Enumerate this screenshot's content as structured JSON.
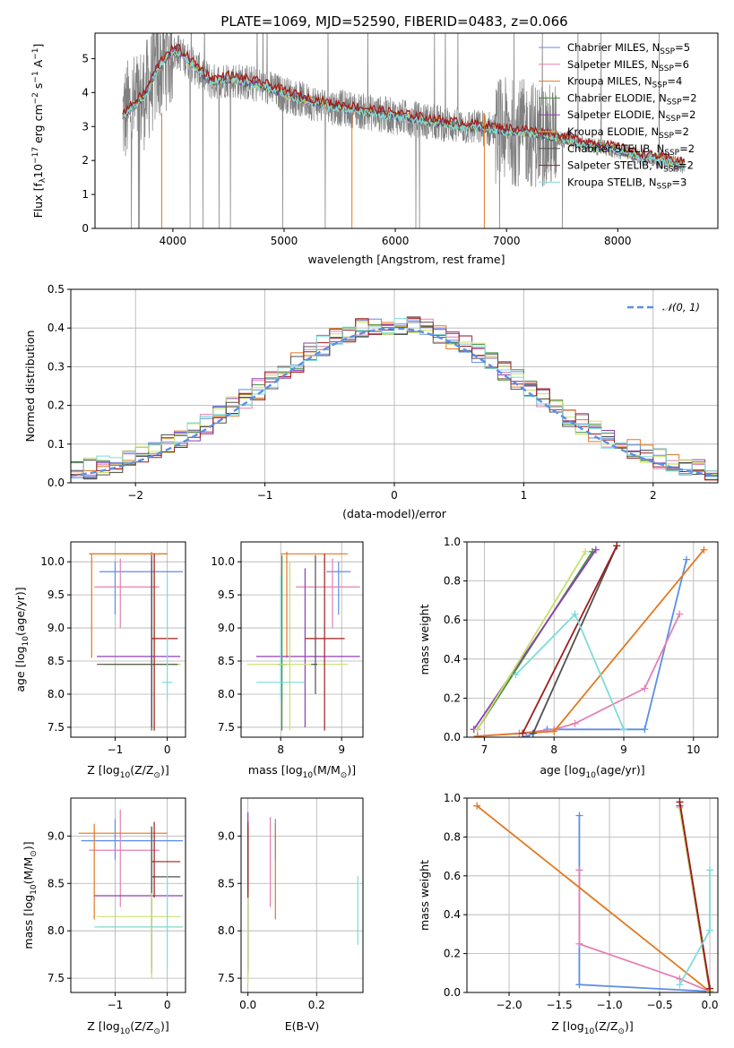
{
  "palette": [
    "#5b8ee6",
    "#e57fb3",
    "#e2781f",
    "#3f8f3a",
    "#8f3fb5",
    "#c9e06a",
    "#505050",
    "#a01c1c",
    "#7fdcd9"
  ],
  "chart_data": [
    {
      "id": "spectrum",
      "type": "line",
      "title": "PLATE=1069, MJD=52590, FIBERID=0483, z=0.066",
      "xlabel": "wavelength [Angstrom, rest frame]",
      "ylabel_parts": [
        "Flux [f",
        "λ",
        "10",
        "−17",
        " erg cm",
        "−2",
        " s",
        "−1",
        " A",
        "−1",
        "]"
      ],
      "xlim": [
        3300,
        8900
      ],
      "ylim": [
        0,
        5.75
      ],
      "xticks": [
        "4000",
        "5000",
        "6000",
        "7000",
        "8000"
      ],
      "yticks": [
        "0",
        "1",
        "2",
        "3",
        "4",
        "5"
      ],
      "continuum": {
        "x": [
          3550,
          3650,
          3750,
          3850,
          3950,
          4050,
          4150,
          4250,
          4350,
          4500,
          4650,
          4800,
          5000,
          5200,
          5400,
          5600,
          5800,
          6000,
          6200,
          6400,
          6600,
          6800,
          7000,
          7200,
          7400,
          7600,
          7800,
          8000,
          8200,
          8400,
          8600
        ],
        "y": [
          3.3,
          3.6,
          3.9,
          4.6,
          5.1,
          5.2,
          4.9,
          4.6,
          4.3,
          4.4,
          4.3,
          4.2,
          3.95,
          3.75,
          3.6,
          3.5,
          3.4,
          3.3,
          3.2,
          3.1,
          3.0,
          2.95,
          2.85,
          2.8,
          2.7,
          2.55,
          2.4,
          2.3,
          2.1,
          2.0,
          1.85
        ]
      },
      "legend": [
        {
          "name": "Chabrier MILES, N",
          "sub": "SSP",
          "val": "=5"
        },
        {
          "name": "Salpeter MILES, N",
          "sub": "SSP",
          "val": "=6"
        },
        {
          "name": "Kroupa MILES, N",
          "sub": "SSP",
          "val": "=4"
        },
        {
          "name": "Chabrier ELODIE, N",
          "sub": "SSP",
          "val": "=2"
        },
        {
          "name": "Salpeter ELODIE, N",
          "sub": "SSP",
          "val": "=2"
        },
        {
          "name": "Kroupa ELODIE, N",
          "sub": "SSP",
          "val": "=2"
        },
        {
          "name": "Chabrier STELIB, N",
          "sub": "SSP",
          "val": "=2"
        },
        {
          "name": "Salpeter STELIB, N",
          "sub": "SSP",
          "val": "=2"
        },
        {
          "name": "Kroupa STELIB, N",
          "sub": "SSP",
          "val": "=3"
        }
      ],
      "legend_loc": "upper right",
      "grid": false
    },
    {
      "id": "residuals",
      "type": "step",
      "xlabel": "(data-model)/error",
      "ylabel": "Normed distribution",
      "xlim": [
        -2.5,
        2.5
      ],
      "ylim": [
        0,
        0.5
      ],
      "xticks": [
        "−2",
        "−1",
        "0",
        "1",
        "2"
      ],
      "xtick_values": [
        -2,
        -1,
        0,
        1,
        2
      ],
      "yticks": [
        "0.0",
        "0.1",
        "0.2",
        "0.3",
        "0.4",
        "0.5"
      ],
      "ytick_values": [
        0,
        0.1,
        0.2,
        0.3,
        0.4,
        0.5
      ],
      "bin_width": 0.1,
      "reference": {
        "name": "𝒩(0, 1)",
        "mu": 0,
        "sigma": 1
      },
      "legend_loc": "upper right",
      "grid": true
    },
    {
      "id": "age-vs-Z",
      "type": "errorbar",
      "xlabel_parts": [
        "Z [log",
        "10",
        "(Z/Z",
        "⊙",
        ")]"
      ],
      "ylabel_parts": [
        "age  [log",
        "10",
        "(age/yr)]"
      ],
      "xlim": [
        -1.85,
        0.35
      ],
      "ylim": [
        7.35,
        10.3
      ],
      "xticks": [
        "−1",
        "0"
      ],
      "xtick_values": [
        -1,
        0
      ],
      "yticks": [
        "7.5",
        "8.0",
        "8.5",
        "9.0",
        "9.5",
        "10.0"
      ],
      "ytick_values": [
        7.5,
        8,
        8.5,
        9,
        9.5,
        10
      ],
      "points": [
        {
          "c": 0,
          "x": -1.0,
          "y": 9.85,
          "xe": [
            -1.3,
            0.3
          ],
          "ye": [
            9.2,
            10.0
          ]
        },
        {
          "c": 1,
          "x": -0.9,
          "y": 9.62,
          "xe": [
            -1.4,
            -0.15
          ],
          "ye": [
            9.0,
            10.05
          ]
        },
        {
          "c": 2,
          "x": -1.45,
          "y": 10.12,
          "xe": [
            -1.5,
            0.0
          ],
          "ye": [
            8.55,
            10.12
          ]
        },
        {
          "c": 2,
          "x": -0.3,
          "y": 10.12,
          "xe": [
            -1.5,
            0.0
          ],
          "ye": [
            7.45,
            10.15
          ]
        },
        {
          "c": 3,
          "x": -0.3,
          "y": 8.45,
          "xe": [
            -1.2,
            0.25
          ],
          "ye": [
            7.45,
            9.8
          ]
        },
        {
          "c": 4,
          "x": -0.3,
          "y": 8.57,
          "xe": [
            -1.35,
            0.25
          ],
          "ye": [
            7.5,
            10.0
          ]
        },
        {
          "c": 5,
          "x": -0.25,
          "y": 8.45,
          "xe": [
            -1.3,
            0.25
          ],
          "ye": [
            7.45,
            9.9
          ]
        },
        {
          "c": 6,
          "x": -0.3,
          "y": 8.45,
          "xe": [
            -1.35,
            0.2
          ],
          "ye": [
            7.5,
            10.1
          ]
        },
        {
          "c": 7,
          "x": -0.25,
          "y": 8.84,
          "xe": [
            -0.3,
            0.2
          ],
          "ye": [
            7.45,
            10.12
          ]
        },
        {
          "c": 8,
          "x": 0.0,
          "y": 8.18,
          "xe": [
            -0.1,
            0.1
          ],
          "ye": [
            7.9,
            9.8
          ]
        }
      ],
      "grid": true
    },
    {
      "id": "age-vs-mass",
      "type": "errorbar",
      "xlabel_parts": [
        "mass [log",
        "10",
        "(M/M",
        "⊙",
        ")]"
      ],
      "xlim": [
        7.35,
        9.35
      ],
      "ylim": [
        7.35,
        10.3
      ],
      "xticks": [
        "8",
        "9"
      ],
      "xtick_values": [
        8,
        9
      ],
      "yticks": [
        "7.5",
        "8.0",
        "8.5",
        "9.0",
        "9.5",
        "10.0"
      ],
      "ytick_values": [
        7.5,
        8,
        8.5,
        9,
        9.5,
        10
      ],
      "points": [
        {
          "c": 0,
          "x": 8.95,
          "y": 9.85,
          "xe": [
            8.75,
            9.15
          ],
          "ye": [
            9.2,
            10.0
          ]
        },
        {
          "c": 1,
          "x": 8.85,
          "y": 9.62,
          "xe": [
            8.25,
            9.3
          ],
          "ye": [
            9.0,
            10.05
          ]
        },
        {
          "c": 2,
          "x": 8.1,
          "y": 10.12,
          "xe": [
            8.0,
            9.1
          ],
          "ye": [
            8.55,
            10.15
          ]
        },
        {
          "c": 3,
          "x": 8.02,
          "y": 8.45,
          "xe": [
            7.95,
            8.1
          ],
          "ye": [
            7.45,
            10.1
          ]
        },
        {
          "c": 4,
          "x": 8.4,
          "y": 8.57,
          "xe": [
            7.6,
            9.3
          ],
          "ye": [
            7.5,
            9.9
          ]
        },
        {
          "c": 5,
          "x": 8.15,
          "y": 8.45,
          "xe": [
            7.45,
            9.1
          ],
          "ye": [
            7.45,
            10.0
          ]
        },
        {
          "c": 6,
          "x": 8.57,
          "y": 8.45,
          "xe": [
            8.5,
            8.6
          ],
          "ye": [
            8.0,
            10.1
          ]
        },
        {
          "c": 7,
          "x": 8.72,
          "y": 8.84,
          "xe": [
            8.4,
            9.05
          ],
          "ye": [
            7.45,
            10.12
          ]
        },
        {
          "c": 8,
          "x": 8.0,
          "y": 8.18,
          "xe": [
            7.6,
            8.4
          ],
          "ye": [
            7.9,
            9.8
          ]
        }
      ],
      "grid": true
    },
    {
      "id": "cumulative-age",
      "type": "line",
      "xlabel_parts": [
        "age  [log",
        "10",
        "(age/yr)]"
      ],
      "ylabel": "mass weight",
      "xlim": [
        6.75,
        10.35
      ],
      "ylim": [
        0,
        1
      ],
      "xticks": [
        "7",
        "8",
        "9",
        "10"
      ],
      "xtick_values": [
        7,
        8,
        9,
        10
      ],
      "yticks": [
        "0.0",
        "0.2",
        "0.4",
        "0.6",
        "0.8",
        "1.0"
      ],
      "ytick_values": [
        0,
        0.2,
        0.4,
        0.6,
        0.8,
        1
      ],
      "series": [
        {
          "c": 0,
          "x": [
            7.6,
            7.9,
            9.3,
            9.9
          ],
          "y": [
            0.005,
            0.04,
            0.04,
            0.91
          ]
        },
        {
          "c": 1,
          "x": [
            6.9,
            7.5,
            8.0,
            8.3,
            9.3,
            9.8
          ],
          "y": [
            0.005,
            0.02,
            0.04,
            0.07,
            0.25,
            0.63
          ]
        },
        {
          "c": 2,
          "x": [
            6.9,
            8.0,
            10.15
          ],
          "y": [
            0.005,
            0.03,
            0.96
          ]
        },
        {
          "c": 3,
          "x": [
            6.9,
            8.55
          ],
          "y": [
            0.04,
            0.95
          ]
        },
        {
          "c": 4,
          "x": [
            6.85,
            8.6
          ],
          "y": [
            0.04,
            0.96
          ]
        },
        {
          "c": 5,
          "x": [
            6.9,
            8.45
          ],
          "y": [
            0.04,
            0.95
          ]
        },
        {
          "c": 6,
          "x": [
            7.7,
            8.9
          ],
          "y": [
            0.02,
            0.98
          ]
        },
        {
          "c": 7,
          "x": [
            7.55,
            8.9
          ],
          "y": [
            0.02,
            0.98
          ]
        },
        {
          "c": 8,
          "x": [
            7.45,
            8.3,
            9.0
          ],
          "y": [
            0.32,
            0.63,
            0.04
          ]
        }
      ],
      "grid": true
    },
    {
      "id": "mass-vs-Z",
      "type": "errorbar",
      "xlabel_parts": [
        "Z [log",
        "10",
        "(Z/Z",
        "⊙",
        ")]"
      ],
      "ylabel_parts": [
        "mass [log",
        "10",
        "(M/M",
        "⊙",
        ")]"
      ],
      "xlim": [
        -1.85,
        0.35
      ],
      "ylim": [
        7.35,
        9.4
      ],
      "xticks": [
        "−1",
        "0"
      ],
      "xtick_values": [
        -1,
        0
      ],
      "yticks": [
        "7.5",
        "8.0",
        "8.5",
        "9.0"
      ],
      "ytick_values": [
        7.5,
        8,
        8.5,
        9
      ],
      "points": [
        {
          "c": 0,
          "x": -1.0,
          "y": 8.95,
          "xe": [
            -1.65,
            0.3
          ],
          "ye": [
            8.75,
            9.18
          ]
        },
        {
          "c": 1,
          "x": -0.9,
          "y": 8.85,
          "xe": [
            -1.5,
            -0.15
          ],
          "ye": [
            8.25,
            9.28
          ]
        },
        {
          "c": 2,
          "x": -1.4,
          "y": 9.03,
          "xe": [
            -1.7,
            0.0
          ],
          "ye": [
            8.12,
            9.13
          ]
        },
        {
          "c": 3,
          "x": -0.3,
          "y": 8.04,
          "xe": [
            -1.35,
            0.3
          ],
          "ye": [
            7.6,
            9.1
          ]
        },
        {
          "c": 4,
          "x": -0.3,
          "y": 8.37,
          "xe": [
            -1.4,
            0.3
          ],
          "ye": [
            7.55,
            9.05
          ]
        },
        {
          "c": 5,
          "x": -0.3,
          "y": 8.15,
          "xe": [
            -1.35,
            0.25
          ],
          "ye": [
            7.5,
            9.1
          ]
        },
        {
          "c": 6,
          "x": -0.3,
          "y": 8.57,
          "xe": [
            -0.3,
            0.25
          ],
          "ye": [
            8.4,
            9.1
          ]
        },
        {
          "c": 7,
          "x": -0.25,
          "y": 8.73,
          "xe": [
            -0.3,
            0.25
          ],
          "ye": [
            8.35,
            9.15
          ]
        },
        {
          "c": 8,
          "x": 0.0,
          "y": 8.04,
          "xe": [
            -1.4,
            0.3
          ],
          "ye": [
            7.6,
            8.6
          ]
        }
      ],
      "grid": true
    },
    {
      "id": "mass-vs-ebv",
      "type": "errorbar",
      "xlabel_parts": [
        "E(B-V)"
      ],
      "xlim": [
        -0.02,
        0.335
      ],
      "ylim": [
        7.35,
        9.4
      ],
      "xticks": [
        "0.0",
        "0.2"
      ],
      "xtick_values": [
        0,
        0.2
      ],
      "yticks": [
        "7.5",
        "8.0",
        "8.5",
        "9.0"
      ],
      "ytick_values": [
        7.5,
        8,
        8.5,
        9
      ],
      "points": [
        {
          "c": 0,
          "x": 0.08,
          "y": 8.95,
          "xe": [
            0.08,
            0.08
          ],
          "ye": [
            8.75,
            9.18
          ]
        },
        {
          "c": 1,
          "x": 0.065,
          "y": 8.85,
          "xe": [
            0.065,
            0.065
          ],
          "ye": [
            8.25,
            9.2
          ]
        },
        {
          "c": 2,
          "x": 0.08,
          "y": 8.7,
          "xe": [
            0.08,
            0.08
          ],
          "ye": [
            8.12,
            9.13
          ]
        },
        {
          "c": 3,
          "x": 0.0,
          "y": 8.04,
          "xe": [
            0.0,
            0.0
          ],
          "ye": [
            7.6,
            9.1
          ]
        },
        {
          "c": 4,
          "x": 0.0,
          "y": 8.37,
          "xe": [
            0.0,
            0.0
          ],
          "ye": [
            7.55,
            9.25
          ]
        },
        {
          "c": 5,
          "x": 0.0,
          "y": 8.15,
          "xe": [
            0.0,
            0.0
          ],
          "ye": [
            7.45,
            9.1
          ]
        },
        {
          "c": 6,
          "x": 0.0,
          "y": 8.57,
          "xe": [
            0.0,
            0.0
          ],
          "ye": [
            8.4,
            9.1
          ]
        },
        {
          "c": 7,
          "x": 0.0,
          "y": 8.73,
          "xe": [
            0.0,
            0.0
          ],
          "ye": [
            8.35,
            9.15
          ]
        },
        {
          "c": 8,
          "x": 0.32,
          "y": 8.2,
          "xe": [
            0.32,
            0.32
          ],
          "ye": [
            7.85,
            8.58
          ]
        }
      ],
      "grid": true
    },
    {
      "id": "cumulative-Z",
      "type": "line",
      "xlabel_parts": [
        "Z [log",
        "10",
        "(Z/Z",
        "⊙",
        ")]"
      ],
      "ylabel": "mass weight",
      "xlim": [
        -2.42,
        0.08
      ],
      "ylim": [
        0,
        1
      ],
      "xticks": [
        "−2.0",
        "−1.5",
        "−1.0",
        "−0.5",
        "0.0"
      ],
      "xtick_values": [
        -2,
        -1.5,
        -1,
        -0.5,
        0
      ],
      "yticks": [
        "0.0",
        "0.2",
        "0.4",
        "0.6",
        "0.8",
        "1.0"
      ],
      "ytick_values": [
        0,
        0.2,
        0.4,
        0.6,
        0.8,
        1
      ],
      "series": [
        {
          "c": 0,
          "x": [
            0.0,
            -1.3,
            -1.3
          ],
          "y": [
            0.005,
            0.04,
            0.91
          ]
        },
        {
          "c": 1,
          "x": [
            0.0,
            -0.3,
            -1.3,
            -1.3
          ],
          "y": [
            0.005,
            0.07,
            0.25,
            0.63
          ]
        },
        {
          "c": 2,
          "x": [
            0.0,
            -2.32
          ],
          "y": [
            0.005,
            0.96
          ]
        },
        {
          "c": 3,
          "x": [
            0.0,
            -0.3
          ],
          "y": [
            0.005,
            0.95
          ]
        },
        {
          "c": 4,
          "x": [
            0.0,
            -0.3
          ],
          "y": [
            0.005,
            0.96
          ]
        },
        {
          "c": 5,
          "x": [
            0.0,
            -0.3
          ],
          "y": [
            0.005,
            0.95
          ]
        },
        {
          "c": 6,
          "x": [
            0.0,
            -0.3
          ],
          "y": [
            0.02,
            0.98
          ]
        },
        {
          "c": 7,
          "x": [
            0.0,
            -0.3
          ],
          "y": [
            0.02,
            0.98
          ]
        },
        {
          "c": 8,
          "x": [
            -0.3,
            0.0,
            0.0
          ],
          "y": [
            0.04,
            0.32,
            0.63
          ]
        }
      ],
      "grid": true
    }
  ]
}
